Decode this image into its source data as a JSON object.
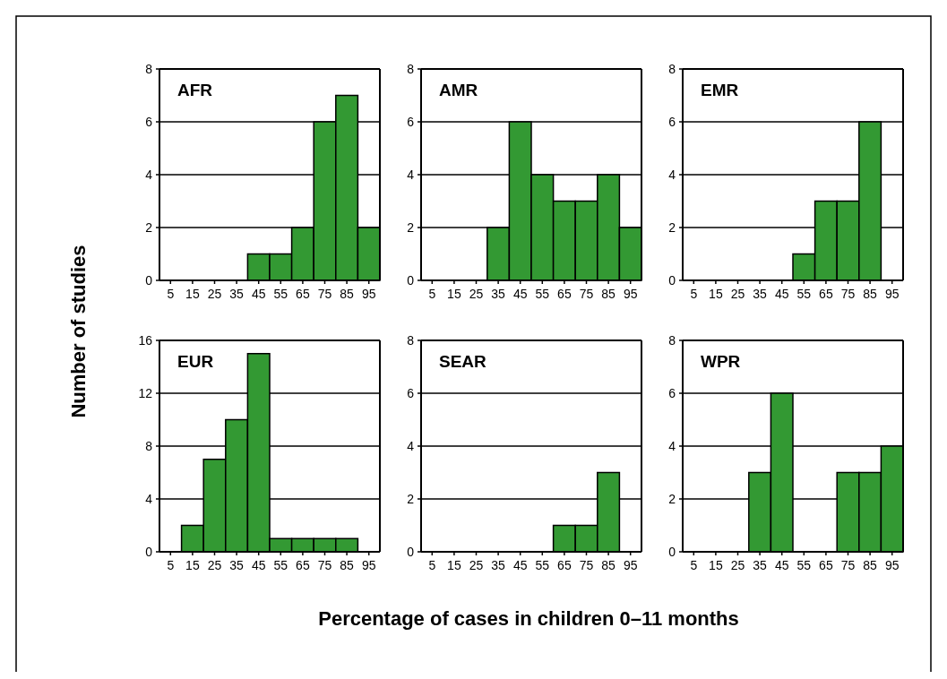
{
  "chart_data": [
    {
      "type": "bar",
      "title": "AFR",
      "ylabel": "Number of studies",
      "categories": [
        "5",
        "15",
        "25",
        "35",
        "45",
        "55",
        "65",
        "75",
        "85",
        "95"
      ],
      "values": [
        0,
        0,
        0,
        0,
        1,
        1,
        2,
        6,
        7,
        2
      ],
      "color": "#339933",
      "ylim": [
        0,
        8
      ],
      "yticks": [
        0,
        2,
        4,
        6,
        8
      ],
      "grid": "y"
    },
    {
      "type": "bar",
      "title": "AMR",
      "categories": [
        "5",
        "15",
        "25",
        "35",
        "45",
        "55",
        "65",
        "75",
        "85",
        "95"
      ],
      "values": [
        0,
        0,
        0,
        2,
        6,
        4,
        3,
        3,
        4,
        2
      ],
      "color": "#339933",
      "ylim": [
        0,
        8
      ],
      "yticks": [
        0,
        2,
        4,
        6,
        8
      ],
      "grid": "y"
    },
    {
      "type": "bar",
      "title": "EMR",
      "categories": [
        "5",
        "15",
        "25",
        "35",
        "45",
        "55",
        "65",
        "75",
        "85",
        "95"
      ],
      "values": [
        0,
        0,
        0,
        0,
        0,
        1,
        3,
        3,
        6,
        0
      ],
      "color": "#339933",
      "ylim": [
        0,
        8
      ],
      "yticks": [
        0,
        2,
        4,
        6,
        8
      ],
      "grid": "y"
    },
    {
      "type": "bar",
      "title": "EUR",
      "categories": [
        "5",
        "15",
        "25",
        "35",
        "45",
        "55",
        "65",
        "75",
        "85",
        "95"
      ],
      "values": [
        0,
        2,
        7,
        10,
        15,
        1,
        1,
        1,
        1,
        0
      ],
      "color": "#339933",
      "ylim": [
        0,
        16
      ],
      "yticks": [
        0,
        4,
        8,
        12,
        16
      ],
      "grid": "y"
    },
    {
      "type": "bar",
      "title": "SEAR",
      "xlabel": "Percentage of cases in children 0–11 months",
      "categories": [
        "5",
        "15",
        "25",
        "35",
        "45",
        "55",
        "65",
        "75",
        "85",
        "95"
      ],
      "values": [
        0,
        0,
        0,
        0,
        0,
        0,
        1,
        1,
        3,
        0
      ],
      "color": "#339933",
      "ylim": [
        0,
        8
      ],
      "yticks": [
        0,
        2,
        4,
        6,
        8
      ],
      "grid": "y"
    },
    {
      "type": "bar",
      "title": "WPR",
      "categories": [
        "5",
        "15",
        "25",
        "35",
        "45",
        "55",
        "65",
        "75",
        "85",
        "95"
      ],
      "values": [
        0,
        0,
        0,
        3,
        6,
        0,
        0,
        3,
        3,
        4
      ],
      "color": "#339933",
      "ylim": [
        0,
        8
      ],
      "yticks": [
        0,
        2,
        4,
        6,
        8
      ],
      "grid": "y"
    }
  ]
}
